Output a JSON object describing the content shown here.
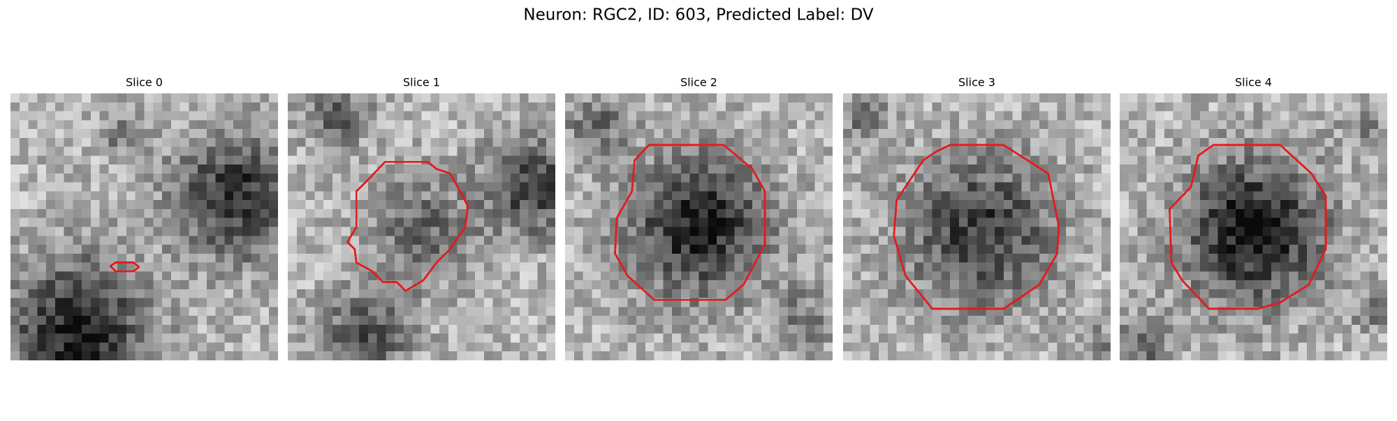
{
  "title": "Neuron: RGC2, ID: 603, Predicted Label: DV",
  "panels": [
    {
      "title": "Slice 0"
    },
    {
      "title": "Slice 1"
    },
    {
      "title": "Slice 2"
    },
    {
      "title": "Slice 3"
    },
    {
      "title": "Slice 4"
    }
  ]
}
